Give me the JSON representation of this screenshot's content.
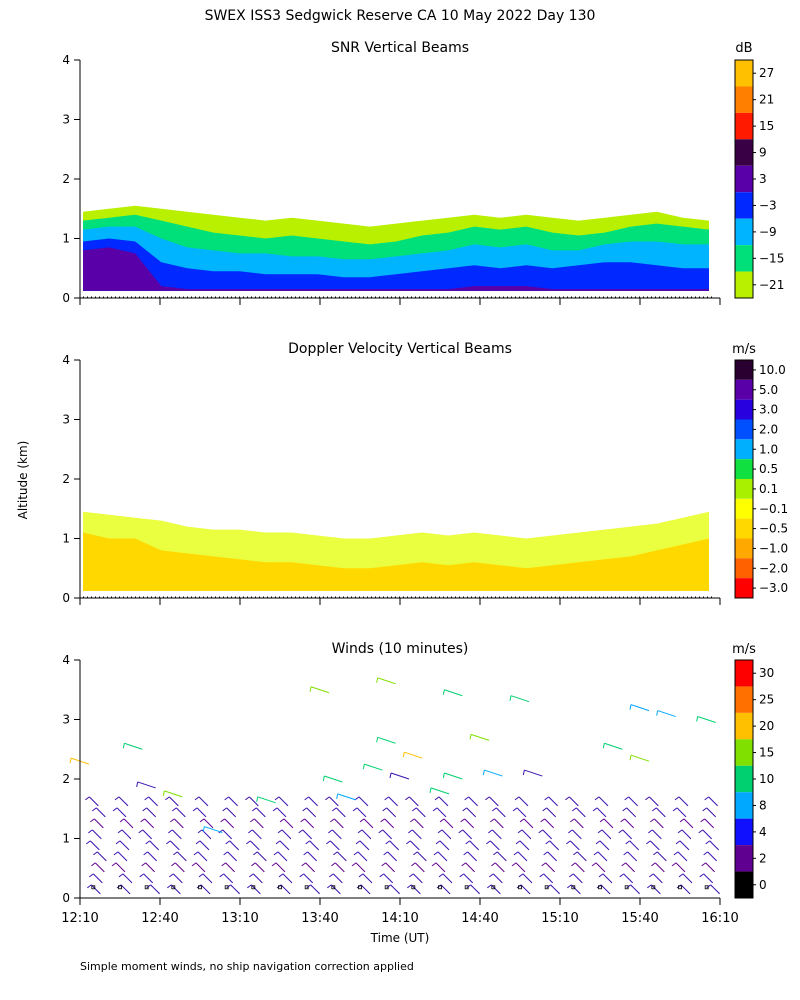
{
  "figure": {
    "title": "SWEX ISS3 Sedgwick Reserve CA  10 May 2022 Day 130",
    "ylabel": "Altitude (km)",
    "xlabel": "Time (UT)",
    "footnote": "Simple moment winds, no ship navigation correction applied"
  },
  "chart_data": [
    {
      "type": "heatmap",
      "title": "SNR Vertical Beams",
      "x_ticks": [
        "12:10",
        "12:40",
        "13:10",
        "13:40",
        "14:10",
        "14:40",
        "15:10",
        "15:40",
        "16:10"
      ],
      "y_ticks": [
        0,
        1,
        2,
        3,
        4
      ],
      "ylim": [
        0,
        4
      ],
      "colorbar": {
        "unit": "dB",
        "labels": [
          "27",
          "21",
          "15",
          "9",
          "3",
          "−3",
          "−9",
          "−15",
          "−21"
        ],
        "colors": [
          "#ffc000",
          "#ff8000",
          "#ff1a00",
          "#3a0045",
          "#5a00a8",
          "#0028ff",
          "#00b4ff",
          "#00e07a",
          "#b8f000"
        ]
      },
      "layers": [
        {
          "name": "-21",
          "color": "#b8f000",
          "top_km": [
            1.45,
            1.5,
            1.55,
            1.5,
            1.45,
            1.4,
            1.35,
            1.3,
            1.35,
            1.3,
            1.25,
            1.2,
            1.25,
            1.3,
            1.35,
            1.4,
            1.35,
            1.4,
            1.35,
            1.3,
            1.35,
            1.4,
            1.45,
            1.35,
            1.3
          ]
        },
        {
          "name": "-15",
          "color": "#00e07a",
          "top_km": [
            1.3,
            1.35,
            1.4,
            1.3,
            1.2,
            1.1,
            1.05,
            1.0,
            1.05,
            1.0,
            0.95,
            0.9,
            0.95,
            1.05,
            1.1,
            1.2,
            1.15,
            1.2,
            1.1,
            1.05,
            1.1,
            1.2,
            1.25,
            1.2,
            1.15
          ]
        },
        {
          "name": "-9",
          "color": "#00b4ff",
          "top_km": [
            1.15,
            1.2,
            1.2,
            1.0,
            0.85,
            0.8,
            0.75,
            0.75,
            0.7,
            0.7,
            0.65,
            0.65,
            0.7,
            0.75,
            0.8,
            0.9,
            0.85,
            0.9,
            0.8,
            0.8,
            0.9,
            0.95,
            0.95,
            0.9,
            0.9
          ]
        },
        {
          "name": "-3",
          "color": "#0028ff",
          "top_km": [
            0.95,
            1.0,
            0.95,
            0.6,
            0.5,
            0.45,
            0.45,
            0.4,
            0.4,
            0.4,
            0.35,
            0.35,
            0.4,
            0.45,
            0.5,
            0.55,
            0.5,
            0.55,
            0.5,
            0.55,
            0.6,
            0.6,
            0.55,
            0.5,
            0.5
          ]
        },
        {
          "name": "3",
          "color": "#5a00a8",
          "top_km": [
            0.8,
            0.85,
            0.75,
            0.2,
            0.15,
            0.15,
            0.15,
            0.15,
            0.15,
            0.15,
            0.15,
            0.15,
            0.15,
            0.15,
            0.15,
            0.2,
            0.2,
            0.2,
            0.15,
            0.15,
            0.15,
            0.15,
            0.15,
            0.15,
            0.15
          ]
        }
      ]
    },
    {
      "type": "heatmap",
      "title": "Doppler Velocity Vertical Beams",
      "x_ticks": [
        "12:10",
        "12:40",
        "13:10",
        "13:40",
        "14:10",
        "14:40",
        "15:10",
        "15:40",
        "16:10"
      ],
      "y_ticks": [
        0,
        1,
        2,
        3,
        4
      ],
      "ylim": [
        0,
        4
      ],
      "colorbar": {
        "unit": "m/s",
        "labels": [
          "10.0",
          "5.0",
          "3.0",
          "2.0",
          "1.0",
          "0.5",
          "0.1",
          "−0.1",
          "−0.5",
          "−1.0",
          "−2.0",
          "−3.0"
        ],
        "colors": [
          "#2a0030",
          "#5a00a8",
          "#2800e0",
          "#0050ff",
          "#00b0ff",
          "#10e040",
          "#a8f000",
          "#ffff00",
          "#ffd800",
          "#ffa800",
          "#ff6000",
          "#ff0000"
        ]
      },
      "layers": [
        {
          "name": "-0.1",
          "color": "#eaff40",
          "top_km": [
            1.45,
            1.4,
            1.35,
            1.3,
            1.2,
            1.15,
            1.15,
            1.1,
            1.1,
            1.05,
            1.0,
            1.0,
            1.05,
            1.1,
            1.05,
            1.1,
            1.05,
            1.0,
            1.05,
            1.1,
            1.15,
            1.2,
            1.25,
            1.35,
            1.45
          ]
        },
        {
          "name": "-0.5",
          "color": "#ffd800",
          "top_km": [
            1.1,
            1.0,
            1.0,
            0.8,
            0.75,
            0.7,
            0.65,
            0.6,
            0.6,
            0.55,
            0.5,
            0.5,
            0.55,
            0.6,
            0.55,
            0.6,
            0.55,
            0.5,
            0.55,
            0.6,
            0.65,
            0.7,
            0.8,
            0.9,
            1.0
          ]
        }
      ]
    },
    {
      "type": "wind_barbs",
      "title": "Winds (10 minutes)",
      "x_ticks": [
        "12:10",
        "12:40",
        "13:10",
        "13:40",
        "14:10",
        "14:40",
        "15:10",
        "15:40",
        "16:10"
      ],
      "y_ticks": [
        0,
        1,
        2,
        3,
        4
      ],
      "ylim": [
        0,
        4
      ],
      "colorbar": {
        "unit": "m/s",
        "labels": [
          "30",
          "25",
          "20",
          "15",
          "10",
          "8",
          "4",
          "2",
          "0"
        ],
        "colors": [
          "#ff0000",
          "#ff7000",
          "#ffc000",
          "#80e000",
          "#00d070",
          "#00a8ff",
          "#1010ff",
          "#600090",
          "#000000"
        ]
      },
      "profile_times": [
        "12:15",
        "12:25",
        "12:35",
        "12:45",
        "12:55",
        "13:05",
        "13:15",
        "13:25",
        "13:35",
        "13:45",
        "13:55",
        "14:05",
        "14:15",
        "14:25",
        "14:35",
        "14:45",
        "14:55",
        "15:05",
        "15:15",
        "15:25",
        "15:35",
        "15:45",
        "15:55",
        "16:05"
      ],
      "low_level_top_km": 1.7,
      "low_level_color": "#3a10b0",
      "upper_barbs": [
        {
          "t": "12:10",
          "alt": 2.3,
          "color": "#ffc000"
        },
        {
          "t": "12:30",
          "alt": 2.55,
          "color": "#00d070"
        },
        {
          "t": "12:35",
          "alt": 1.9,
          "color": "#3a10b0"
        },
        {
          "t": "12:45",
          "alt": 1.75,
          "color": "#80e000"
        },
        {
          "t": "13:00",
          "alt": 1.15,
          "color": "#00a8ff"
        },
        {
          "t": "13:20",
          "alt": 1.65,
          "color": "#00d070"
        },
        {
          "t": "13:40",
          "alt": 3.5,
          "color": "#80e000"
        },
        {
          "t": "13:45",
          "alt": 2.0,
          "color": "#00d070"
        },
        {
          "t": "13:50",
          "alt": 1.7,
          "color": "#00a8ff"
        },
        {
          "t": "14:00",
          "alt": 2.2,
          "color": "#00d070"
        },
        {
          "t": "14:05",
          "alt": 3.65,
          "color": "#80e000"
        },
        {
          "t": "14:05",
          "alt": 2.65,
          "color": "#00d070"
        },
        {
          "t": "14:10",
          "alt": 2.05,
          "color": "#3a10b0"
        },
        {
          "t": "14:15",
          "alt": 2.4,
          "color": "#ffc000"
        },
        {
          "t": "14:25",
          "alt": 1.8,
          "color": "#00d070"
        },
        {
          "t": "14:30",
          "alt": 3.45,
          "color": "#00d070"
        },
        {
          "t": "14:30",
          "alt": 2.05,
          "color": "#00d070"
        },
        {
          "t": "14:40",
          "alt": 2.7,
          "color": "#80e000"
        },
        {
          "t": "14:45",
          "alt": 2.1,
          "color": "#00a8ff"
        },
        {
          "t": "14:55",
          "alt": 3.35,
          "color": "#00d070"
        },
        {
          "t": "15:00",
          "alt": 2.1,
          "color": "#3a10b0"
        },
        {
          "t": "15:30",
          "alt": 2.55,
          "color": "#00d070"
        },
        {
          "t": "15:40",
          "alt": 3.2,
          "color": "#00a8ff"
        },
        {
          "t": "15:40",
          "alt": 2.35,
          "color": "#80e000"
        },
        {
          "t": "15:50",
          "alt": 3.1,
          "color": "#00a8ff"
        },
        {
          "t": "16:05",
          "alt": 3.0,
          "color": "#00d070"
        }
      ]
    }
  ]
}
